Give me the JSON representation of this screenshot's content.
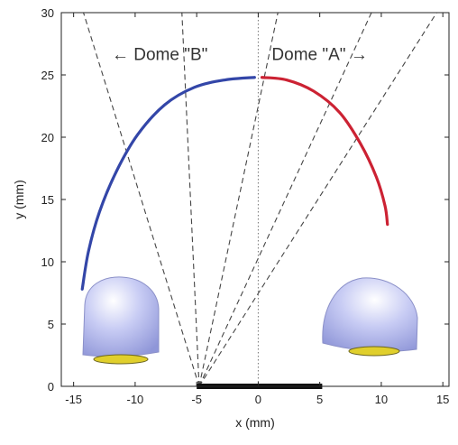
{
  "chart_data": {
    "type": "line",
    "xlabel": "x (mm)",
    "ylabel": "y (mm)",
    "xlim": [
      -16,
      15.5
    ],
    "ylim": [
      0,
      30
    ],
    "xticks": [
      -15,
      -10,
      -5,
      0,
      5,
      10,
      15
    ],
    "yticks": [
      0,
      5,
      10,
      15,
      20,
      25,
      30
    ],
    "grid": false,
    "series": [
      {
        "color": "#3346a8",
        "x": [
          -14.3,
          -13.8,
          -12.9,
          -11.5,
          -9.8,
          -7.6,
          -5.2,
          -2.7,
          -0.3
        ],
        "y": [
          7.8,
          10.8,
          14.0,
          17.3,
          20.2,
          22.6,
          24.0,
          24.6,
          24.8
        ]
      },
      {
        "color": "#cc2233",
        "x": [
          0.3,
          2.3,
          4.5,
          6.6,
          8.3,
          9.6,
          10.3,
          10.5
        ],
        "y": [
          24.8,
          24.6,
          23.7,
          22.0,
          19.5,
          16.8,
          14.5,
          13.0
        ]
      }
    ],
    "dashed_lines": [
      {
        "x": [
          -4.8,
          -6.2
        ],
        "y": [
          0,
          30
        ]
      },
      {
        "x": [
          -4.8,
          1.6
        ],
        "y": [
          0,
          30
        ]
      },
      {
        "x": [
          -4.8,
          9.2
        ],
        "y": [
          0,
          30
        ]
      },
      {
        "x": [
          -4.8,
          14.5
        ],
        "y": [
          0,
          30
        ]
      },
      {
        "x": [
          -4.8,
          -14.2
        ],
        "y": [
          0,
          30
        ]
      }
    ],
    "centerline_x": 0,
    "baseline_bar": {
      "x": [
        -5,
        5.2
      ],
      "y": 0
    },
    "annotations": [
      {
        "text": "← Dome \"B\"",
        "x": -11.9,
        "y": 26.2
      },
      {
        "text": "Dome \"A\" →",
        "x": 1.1,
        "y": 26.2
      }
    ]
  }
}
